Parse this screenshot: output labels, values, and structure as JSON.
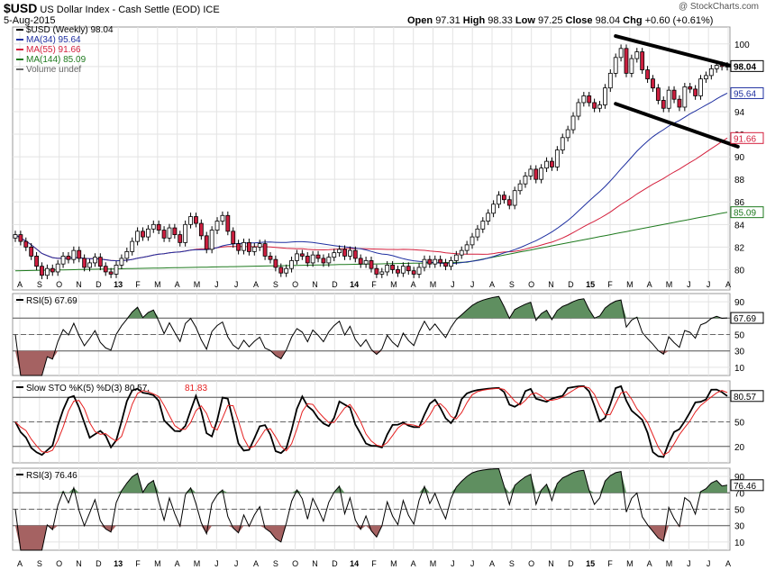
{
  "header": {
    "symbol": "$USD",
    "name": "US Dollar Index - Cash Settle (EOD)",
    "exchange": "ICE",
    "date": "5-Aug-2015",
    "watermark": "@ StockCharts.com",
    "open_label": "Open",
    "open": "97.31",
    "high_label": "High",
    "high": "98.33",
    "low_label": "Low",
    "low": "97.25",
    "close_label": "Close",
    "close": "98.04",
    "chg_label": "Chg",
    "chg": "+0.60 (+0.61%)"
  },
  "colors": {
    "up": "#ffffff",
    "down": "#cc1f3f",
    "ma34": "#1e2fa0",
    "ma55": "#d41f3c",
    "ma144": "#1e7a1e",
    "green_fill": "#5f8f60",
    "red_fill": "#a56262",
    "kline": "#000000",
    "dline": "#e52020"
  },
  "chart_data": [
    {
      "type": "candlestick",
      "panel": "price",
      "legend": [
        {
          "label": "$USD (Weekly) 98.04",
          "color": "#000000"
        },
        {
          "label": "MA(34) 95.64",
          "color": "#1e2fa0"
        },
        {
          "label": "MA(55) 91.66",
          "color": "#d41f3c"
        },
        {
          "label": "MA(144) 85.09",
          "color": "#1e7a1e"
        },
        {
          "label": "Volume undef",
          "color": "#666666"
        }
      ],
      "ylim": [
        78.2,
        101.5
      ],
      "yticks": [
        80,
        82,
        84,
        86,
        88,
        90,
        92,
        94,
        96,
        98,
        100
      ],
      "ytick_labels": [
        "80",
        "82",
        "84",
        "86",
        "88",
        "90",
        "92",
        "94",
        "",
        "",
        "100"
      ],
      "value_tags": [
        {
          "value": 98.04,
          "label": "98.04",
          "color": "#000000",
          "bold": true
        },
        {
          "value": 95.64,
          "label": "95.64",
          "color": "#1e2fa0",
          "bold": false
        },
        {
          "value": 91.66,
          "label": "91.66",
          "color": "#d41f3c",
          "bold": false
        },
        {
          "value": 85.09,
          "label": "85.09",
          "color": "#1e7a1e",
          "bold": false
        }
      ],
      "closes": [
        83.1,
        82.5,
        82.0,
        81.2,
        80.3,
        79.5,
        80.1,
        79.8,
        80.5,
        81.2,
        80.9,
        81.7,
        81.0,
        80.2,
        80.6,
        81.1,
        80.3,
        79.8,
        79.6,
        80.4,
        81.0,
        81.6,
        82.5,
        83.4,
        82.9,
        83.6,
        84.0,
        83.5,
        82.8,
        83.7,
        83.1,
        82.4,
        84.0,
        84.7,
        84.1,
        83.0,
        81.8,
        83.5,
        84.3,
        84.8,
        83.4,
        82.3,
        81.7,
        82.4,
        81.6,
        82.0,
        82.3,
        81.2,
        80.9,
        80.2,
        79.7,
        80.1,
        80.8,
        81.4,
        81.2,
        80.6,
        81.3,
        81.0,
        80.6,
        81.1,
        81.5,
        81.8,
        81.2,
        81.7,
        81.0,
        80.5,
        80.8,
        80.1,
        79.6,
        79.8,
        80.4,
        80.0,
        79.7,
        80.3,
        79.9,
        79.6,
        80.2,
        80.9,
        80.5,
        80.9,
        80.6,
        80.3,
        80.8,
        81.3,
        81.7,
        82.2,
        82.9,
        83.6,
        84.3,
        85.0,
        85.8,
        86.6,
        86.2,
        85.7,
        87.0,
        87.6,
        88.3,
        88.9,
        88.0,
        89.0,
        89.6,
        89.1,
        90.6,
        91.7,
        92.4,
        93.6,
        94.8,
        95.4,
        94.8,
        94.3,
        94.6,
        96.1,
        97.4,
        98.8,
        99.6,
        97.4,
        98.7,
        99.3,
        97.7,
        96.9,
        96.1,
        95.0,
        94.3,
        95.9,
        95.1,
        94.4,
        96.2,
        96.0,
        95.4,
        96.9,
        97.2,
        97.8,
        98.1,
        98.0,
        98.04
      ],
      "ma34_end": 95.64,
      "ma55_end": 91.66,
      "ma144_end": 85.09,
      "trendlines": [
        {
          "from": [
            113,
            100.7
          ],
          "to": [
            136,
            97.9
          ]
        },
        {
          "from": [
            113,
            94.7
          ],
          "to": [
            136,
            90.9
          ]
        }
      ]
    },
    {
      "type": "line",
      "panel": "rsi5",
      "title": "RSI(5) 67.69",
      "ylim": [
        0,
        100
      ],
      "yticks": [
        10,
        30,
        50,
        70,
        90
      ],
      "ytick_labels": [
        "10",
        "30",
        "50",
        "",
        "90"
      ],
      "levels": [
        30,
        70
      ],
      "last_label": "67.69"
    },
    {
      "type": "line",
      "panel": "sto",
      "title": "Slow STO %K(5) %D(3) 80.57,",
      "title2": "81.83",
      "ylim": [
        0,
        100
      ],
      "yticks": [
        20,
        50,
        80
      ],
      "ytick_labels": [
        "20",
        "50",
        ""
      ],
      "levels": [
        20,
        80
      ],
      "last_label": "80.57"
    },
    {
      "type": "line",
      "panel": "rsi3",
      "title": "RSI(3) 76.46",
      "ylim": [
        0,
        100
      ],
      "yticks": [
        10,
        30,
        50,
        70,
        90
      ],
      "ytick_labels": [
        "10",
        "30",
        "50",
        "70",
        "90"
      ],
      "levels": [
        30,
        70
      ],
      "last_label": "76.46"
    }
  ],
  "x_axis": {
    "labels": [
      "A",
      "S",
      "O",
      "N",
      "D",
      "13",
      "F",
      "M",
      "A",
      "M",
      "J",
      "J",
      "A",
      "S",
      "O",
      "N",
      "D",
      "14",
      "F",
      "M",
      "A",
      "M",
      "J",
      "J",
      "A",
      "S",
      "O",
      "N",
      "D",
      "15",
      "F",
      "M",
      "A",
      "M",
      "J",
      "J",
      "A"
    ],
    "bold": [
      "13",
      "14",
      "15"
    ]
  }
}
